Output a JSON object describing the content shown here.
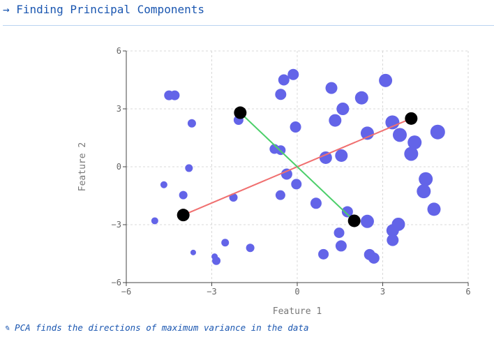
{
  "header": {
    "title": "→ Finding Principal Components"
  },
  "caption": "✎ PCA finds the directions of maximum variance in the data",
  "colors": {
    "points": "#6364e8",
    "pc1": "#f07070",
    "pc2": "#4ccf6a",
    "endpoints": "#000000",
    "grid": "#d8d8d8",
    "axis": "#444444"
  },
  "chart_data": {
    "type": "scatter",
    "title": "",
    "xlabel": "Feature 1",
    "ylabel": "Feature 2",
    "xlim": [
      -6,
      6
    ],
    "ylim": [
      -6,
      6
    ],
    "xticks": [
      -6,
      -3,
      0,
      3,
      6
    ],
    "yticks": [
      6,
      3,
      0,
      -3,
      -6
    ],
    "grid": true,
    "points": [
      {
        "x": -4.5,
        "y": 3.7,
        "size": 7
      },
      {
        "x": -4.3,
        "y": 3.7,
        "size": 7
      },
      {
        "x": -3.7,
        "y": 2.25,
        "size": 6
      },
      {
        "x": -2.06,
        "y": 2.42,
        "size": 7
      },
      {
        "x": -3.8,
        "y": -0.07,
        "size": 5.5
      },
      {
        "x": -4.68,
        "y": -0.93,
        "size": 5
      },
      {
        "x": -4.0,
        "y": -1.47,
        "size": 6
      },
      {
        "x": -5.0,
        "y": -2.8,
        "size": 5
      },
      {
        "x": -3.65,
        "y": -4.44,
        "size": 4
      },
      {
        "x": -2.9,
        "y": -4.65,
        "size": 4.5
      },
      {
        "x": -2.84,
        "y": -4.87,
        "size": 6
      },
      {
        "x": -2.53,
        "y": -3.93,
        "size": 5.5
      },
      {
        "x": -2.24,
        "y": -1.59,
        "size": 6
      },
      {
        "x": -1.65,
        "y": -4.2,
        "size": 6
      },
      {
        "x": -0.47,
        "y": 4.5,
        "size": 8
      },
      {
        "x": -0.14,
        "y": 4.78,
        "size": 8
      },
      {
        "x": -0.58,
        "y": 3.75,
        "size": 8
      },
      {
        "x": -0.06,
        "y": 2.06,
        "size": 8
      },
      {
        "x": -0.8,
        "y": 0.92,
        "size": 7
      },
      {
        "x": -0.58,
        "y": 0.86,
        "size": 7
      },
      {
        "x": -0.37,
        "y": -0.38,
        "size": 8
      },
      {
        "x": -0.59,
        "y": -1.47,
        "size": 7
      },
      {
        "x": -0.03,
        "y": -0.9,
        "size": 7.5
      },
      {
        "x": 0.66,
        "y": -1.89,
        "size": 8
      },
      {
        "x": 0.92,
        "y": -4.53,
        "size": 7.5
      },
      {
        "x": 1.0,
        "y": 0.47,
        "size": 9
      },
      {
        "x": 1.2,
        "y": 4.08,
        "size": 8.5
      },
      {
        "x": 1.33,
        "y": 2.4,
        "size": 9
      },
      {
        "x": 1.6,
        "y": 3.0,
        "size": 9
      },
      {
        "x": 1.55,
        "y": 0.58,
        "size": 9
      },
      {
        "x": 1.47,
        "y": -3.42,
        "size": 7.5
      },
      {
        "x": 1.54,
        "y": -4.1,
        "size": 8
      },
      {
        "x": 1.76,
        "y": -2.33,
        "size": 8
      },
      {
        "x": 2.26,
        "y": 3.57,
        "size": 9.5
      },
      {
        "x": 2.46,
        "y": 1.74,
        "size": 9.5
      },
      {
        "x": 2.46,
        "y": -2.83,
        "size": 9.5
      },
      {
        "x": 2.54,
        "y": -4.55,
        "size": 8
      },
      {
        "x": 2.69,
        "y": -4.73,
        "size": 8
      },
      {
        "x": 3.1,
        "y": 4.47,
        "size": 9.5
      },
      {
        "x": 3.34,
        "y": 2.3,
        "size": 10
      },
      {
        "x": 3.6,
        "y": 1.65,
        "size": 10
      },
      {
        "x": 3.35,
        "y": -3.3,
        "size": 9
      },
      {
        "x": 3.35,
        "y": -3.8,
        "size": 8.5
      },
      {
        "x": 3.55,
        "y": -2.98,
        "size": 9.5
      },
      {
        "x": 4.12,
        "y": 1.26,
        "size": 10
      },
      {
        "x": 4.0,
        "y": 0.67,
        "size": 10
      },
      {
        "x": 4.51,
        "y": -0.64,
        "size": 10
      },
      {
        "x": 4.44,
        "y": -1.27,
        "size": 10
      },
      {
        "x": 4.8,
        "y": -2.2,
        "size": 9.5
      },
      {
        "x": 4.93,
        "y": 1.8,
        "size": 10.5
      }
    ],
    "components": [
      {
        "color": "#f07070",
        "x": [
          -4.0,
          4.0
        ],
        "y": [
          -2.5,
          2.5
        ]
      },
      {
        "color": "#4ccf6a",
        "x": [
          -2.0,
          2.0
        ],
        "y": [
          2.8,
          -2.8
        ]
      }
    ]
  }
}
